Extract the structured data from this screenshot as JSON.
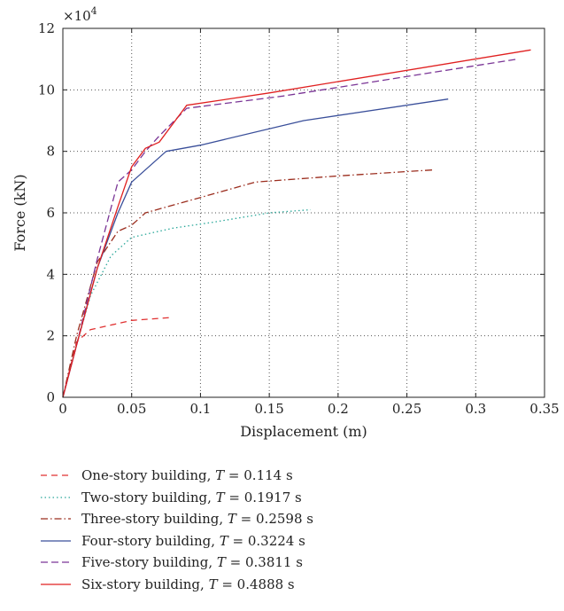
{
  "chart_data": {
    "type": "line",
    "xlabel": "Displacement (m)",
    "ylabel": "Force (kN)",
    "y_multiplier": "×10",
    "y_exponent": "4",
    "xlim": [
      0,
      0.35
    ],
    "ylim": [
      0,
      120000
    ],
    "x_ticks": [
      0,
      0.05,
      0.1,
      0.15,
      0.2,
      0.25,
      0.3,
      0.35
    ],
    "x_tick_labels": [
      "0",
      "0.05",
      "0.1",
      "0.15",
      "0.2",
      "0.25",
      "0.3",
      "0.35"
    ],
    "y_ticks": [
      0,
      20000,
      40000,
      60000,
      80000,
      100000,
      120000
    ],
    "y_tick_labels": [
      "0",
      "2",
      "4",
      "6",
      "8",
      "10",
      "12"
    ],
    "grid": true,
    "legend_position": "below",
    "series": [
      {
        "name": "One-story building, ",
        "period_symbol": "T",
        "period": " = 0.114 s",
        "color": "#e03030",
        "dash": "7,5",
        "x": [
          0,
          0.01,
          0.02,
          0.03,
          0.05,
          0.065,
          0.08
        ],
        "y": [
          0,
          18000,
          22000,
          23000,
          25000,
          25500,
          26000
        ]
      },
      {
        "name": "Two-story building, ",
        "period_symbol": "T",
        "period": " = 0.1917 s",
        "color": "#2aa89a",
        "dash": "1.5,3",
        "x": [
          0,
          0.01,
          0.02,
          0.035,
          0.05,
          0.08,
          0.11,
          0.15,
          0.18
        ],
        "y": [
          0,
          17000,
          33000,
          46000,
          52000,
          55000,
          57000,
          60000,
          61000
        ]
      },
      {
        "name": "Three-story building, ",
        "period_symbol": "T",
        "period": " = 0.2598 s",
        "color": "#9b2d1e",
        "dash": "8,3,1.5,3",
        "x": [
          0,
          0.01,
          0.025,
          0.04,
          0.05,
          0.06,
          0.1,
          0.14,
          0.2,
          0.27
        ],
        "y": [
          0,
          20000,
          44000,
          54000,
          56000,
          60000,
          65000,
          70000,
          72000,
          74000
        ]
      },
      {
        "name": "Four-story building, ",
        "period_symbol": "T",
        "period": " = 0.3224 s",
        "color": "#3a4f9a",
        "dash": "",
        "x": [
          0,
          0.01,
          0.025,
          0.04,
          0.05,
          0.075,
          0.1,
          0.175,
          0.28
        ],
        "y": [
          0,
          17000,
          42000,
          60000,
          70000,
          80000,
          82000,
          90000,
          97000
        ]
      },
      {
        "name": "Five-story building, ",
        "period_symbol": "T",
        "period": " = 0.3811 s",
        "color": "#7a3596",
        "dash": "8,4",
        "x": [
          0,
          0.01,
          0.025,
          0.04,
          0.05,
          0.06,
          0.07,
          0.09,
          0.16,
          0.33
        ],
        "y": [
          0,
          17000,
          45000,
          70000,
          74000,
          80000,
          85000,
          94000,
          98000,
          110000
        ]
      },
      {
        "name": "Six-story building, ",
        "period_symbol": "T",
        "period": " = 0.4888 s",
        "color": "#e02020",
        "dash": "",
        "x": [
          0,
          0.01,
          0.025,
          0.04,
          0.05,
          0.06,
          0.07,
          0.09,
          0.15,
          0.34
        ],
        "y": [
          0,
          17000,
          42000,
          62000,
          75000,
          81000,
          83000,
          95000,
          99000,
          113000
        ]
      }
    ]
  }
}
